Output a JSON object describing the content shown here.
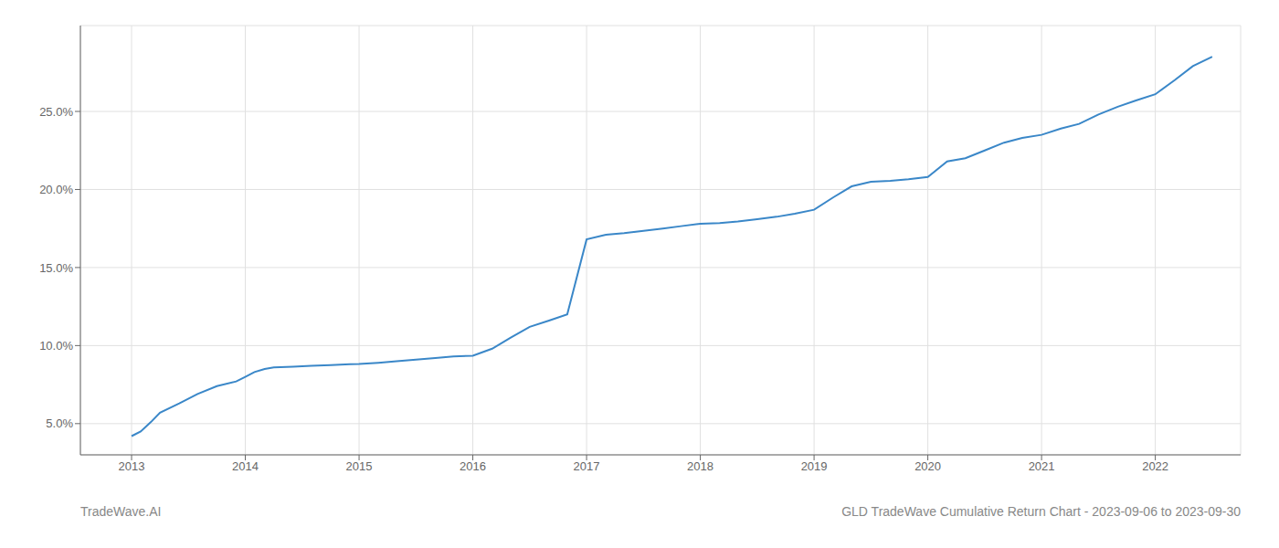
{
  "chart_data": {
    "type": "line",
    "title": "GLD TradeWave Cumulative Return Chart - 2023-09-06 to 2023-09-30",
    "annotations": [
      "TradeWave.AI"
    ],
    "color": "#3a87c8",
    "grid": true,
    "x": [
      2013.0,
      2013.08,
      2013.17,
      2013.25,
      2013.42,
      2013.58,
      2013.75,
      2013.92,
      2014.0,
      2014.08,
      2014.17,
      2014.25,
      2014.42,
      2014.58,
      2014.75,
      2014.92,
      2015.0,
      2015.17,
      2015.33,
      2015.5,
      2015.67,
      2015.83,
      2016.0,
      2016.17,
      2016.33,
      2016.5,
      2016.67,
      2016.83,
      2017.0,
      2017.17,
      2017.33,
      2017.5,
      2017.67,
      2017.83,
      2018.0,
      2018.17,
      2018.33,
      2018.5,
      2018.67,
      2018.83,
      2019.0,
      2019.17,
      2019.33,
      2019.5,
      2019.67,
      2019.83,
      2020.0,
      2020.17,
      2020.33,
      2020.5,
      2020.67,
      2020.83,
      2021.0,
      2021.17,
      2021.33,
      2021.5,
      2021.67,
      2021.83,
      2022.0,
      2022.17,
      2022.33,
      2022.5
    ],
    "values": [
      4.2,
      4.5,
      5.1,
      5.7,
      6.3,
      6.9,
      7.4,
      7.7,
      8.0,
      8.3,
      8.5,
      8.6,
      8.65,
      8.7,
      8.75,
      8.8,
      8.82,
      8.9,
      9.0,
      9.1,
      9.2,
      9.3,
      9.35,
      9.8,
      10.5,
      11.2,
      11.6,
      12.0,
      16.8,
      17.1,
      17.2,
      17.35,
      17.5,
      17.65,
      17.8,
      17.85,
      17.95,
      18.1,
      18.25,
      18.45,
      18.7,
      19.5,
      20.2,
      20.5,
      20.55,
      20.65,
      20.8,
      21.8,
      22.0,
      22.5,
      23.0,
      23.3,
      23.5,
      23.9,
      24.2,
      24.8,
      25.3,
      25.7,
      26.1,
      27.0,
      27.9,
      28.5
    ],
    "xlim": [
      2012.55,
      2022.75
    ],
    "xticks": [
      2013,
      2014,
      2015,
      2016,
      2017,
      2018,
      2019,
      2020,
      2021,
      2022
    ],
    "ylim": [
      3.0,
      30.5
    ],
    "yticks": [
      {
        "value": 5.0,
        "label": "5.0%"
      },
      {
        "value": 10.0,
        "label": "10.0%"
      },
      {
        "value": 15.0,
        "label": "15.0%"
      },
      {
        "value": 20.0,
        "label": "20.0%"
      },
      {
        "value": 25.0,
        "label": "25.0%"
      }
    ]
  }
}
